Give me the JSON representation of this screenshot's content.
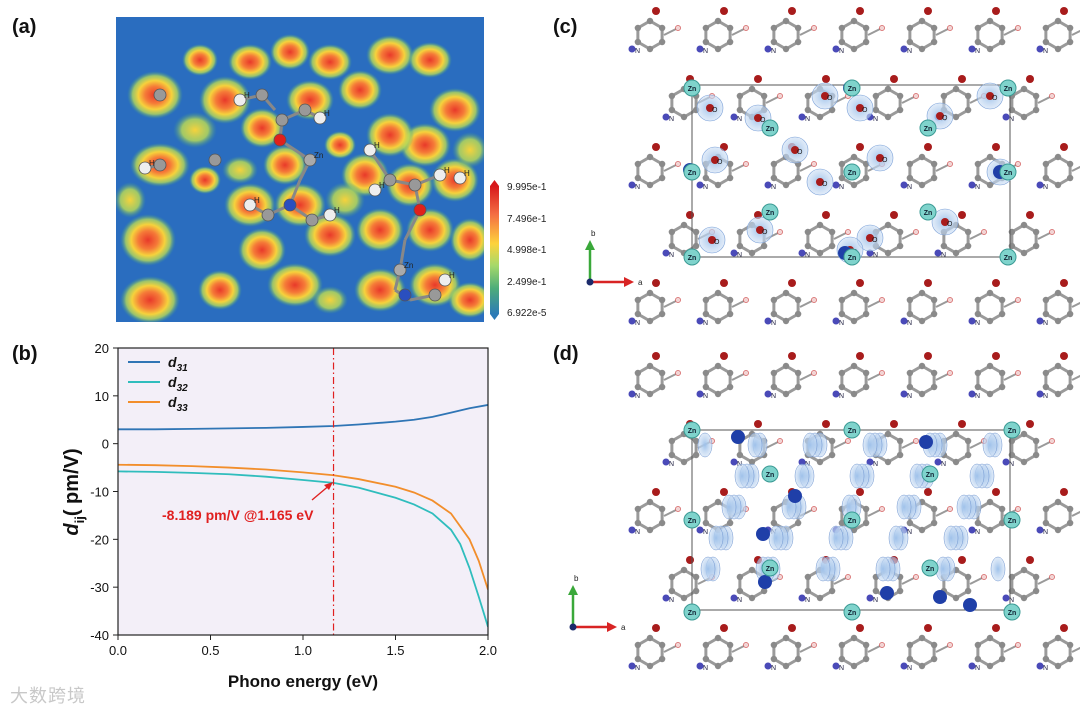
{
  "panels": {
    "a": "(a)",
    "b": "(b)",
    "c": "(c)",
    "d": "(d)"
  },
  "colorbar": {
    "ticks": [
      "9.995e-1",
      "7.496e-1",
      "4.998e-1",
      "2.499e-1",
      "6.922e-5"
    ],
    "colors": [
      "#d7191c",
      "#f46d43",
      "#fdd33c",
      "#a6d96a",
      "#4dac7a",
      "#2c7bb6"
    ]
  },
  "atom_labels_a": {
    "hydrogen": "H",
    "zinc": "Zn"
  },
  "atom_labels_cd": {
    "zinc": "Zn",
    "nitrogen": "N",
    "oxygen": "O"
  },
  "axes_labels": {
    "b": "b",
    "a": "a"
  },
  "annotation": "-8.189 pm/V @1.165 eV",
  "watermark": "大数跨境",
  "chart_data": {
    "type": "line",
    "title": "",
    "xlabel": "Phono energy (eV)",
    "ylabel": "d_ij( pm/V)",
    "ylabel_main": "d",
    "ylabel_sub": "ij",
    "ylabel_rest": "( pm/V)",
    "xlim": [
      0.0,
      2.0
    ],
    "ylim": [
      -40,
      20
    ],
    "xticks": [
      0.0,
      0.5,
      1.0,
      1.5,
      2.0
    ],
    "xtick_labels": [
      "0.0",
      "0.5",
      "1.0",
      "1.5",
      "2.0"
    ],
    "yticks": [
      20,
      10,
      0,
      -10,
      -20,
      -30,
      -40
    ],
    "ytick_labels": [
      "20",
      "10",
      "0",
      "-10",
      "-20",
      "-30",
      "-40"
    ],
    "legend_position": "top-left",
    "vline_x": 1.165,
    "series": [
      {
        "name": "d31",
        "label_main": "d",
        "label_sub": "31",
        "color": "#2f75b5",
        "x": [
          0,
          0.2,
          0.4,
          0.6,
          0.8,
          1.0,
          1.165,
          1.3,
          1.5,
          1.6,
          1.7,
          1.8,
          1.9,
          2.0
        ],
        "y": [
          3.0,
          3.0,
          3.1,
          3.2,
          3.3,
          3.5,
          3.7,
          4.0,
          4.6,
          5.0,
          5.6,
          6.5,
          7.4,
          8.1
        ]
      },
      {
        "name": "d32",
        "label_main": "d",
        "label_sub": "32",
        "color": "#2fbdbd",
        "x": [
          0,
          0.2,
          0.4,
          0.6,
          0.8,
          1.0,
          1.165,
          1.3,
          1.5,
          1.6,
          1.7,
          1.8,
          1.85,
          1.9,
          1.95,
          2.0
        ],
        "y": [
          -5.8,
          -5.9,
          -6.1,
          -6.4,
          -6.9,
          -7.6,
          -8.189,
          -9.2,
          -11.3,
          -12.7,
          -14.6,
          -18.0,
          -21.0,
          -26.0,
          -32.0,
          -38.3
        ]
      },
      {
        "name": "d33",
        "label_main": "d",
        "label_sub": "33",
        "color": "#f28e2b",
        "x": [
          0,
          0.2,
          0.4,
          0.6,
          0.8,
          1.0,
          1.165,
          1.3,
          1.5,
          1.6,
          1.7,
          1.8,
          1.9,
          1.95,
          2.0
        ],
        "y": [
          -4.4,
          -4.5,
          -4.7,
          -5.0,
          -5.4,
          -6.0,
          -6.6,
          -7.4,
          -9.0,
          -10.2,
          -11.9,
          -14.6,
          -20.0,
          -24.5,
          -30.5
        ]
      }
    ]
  }
}
